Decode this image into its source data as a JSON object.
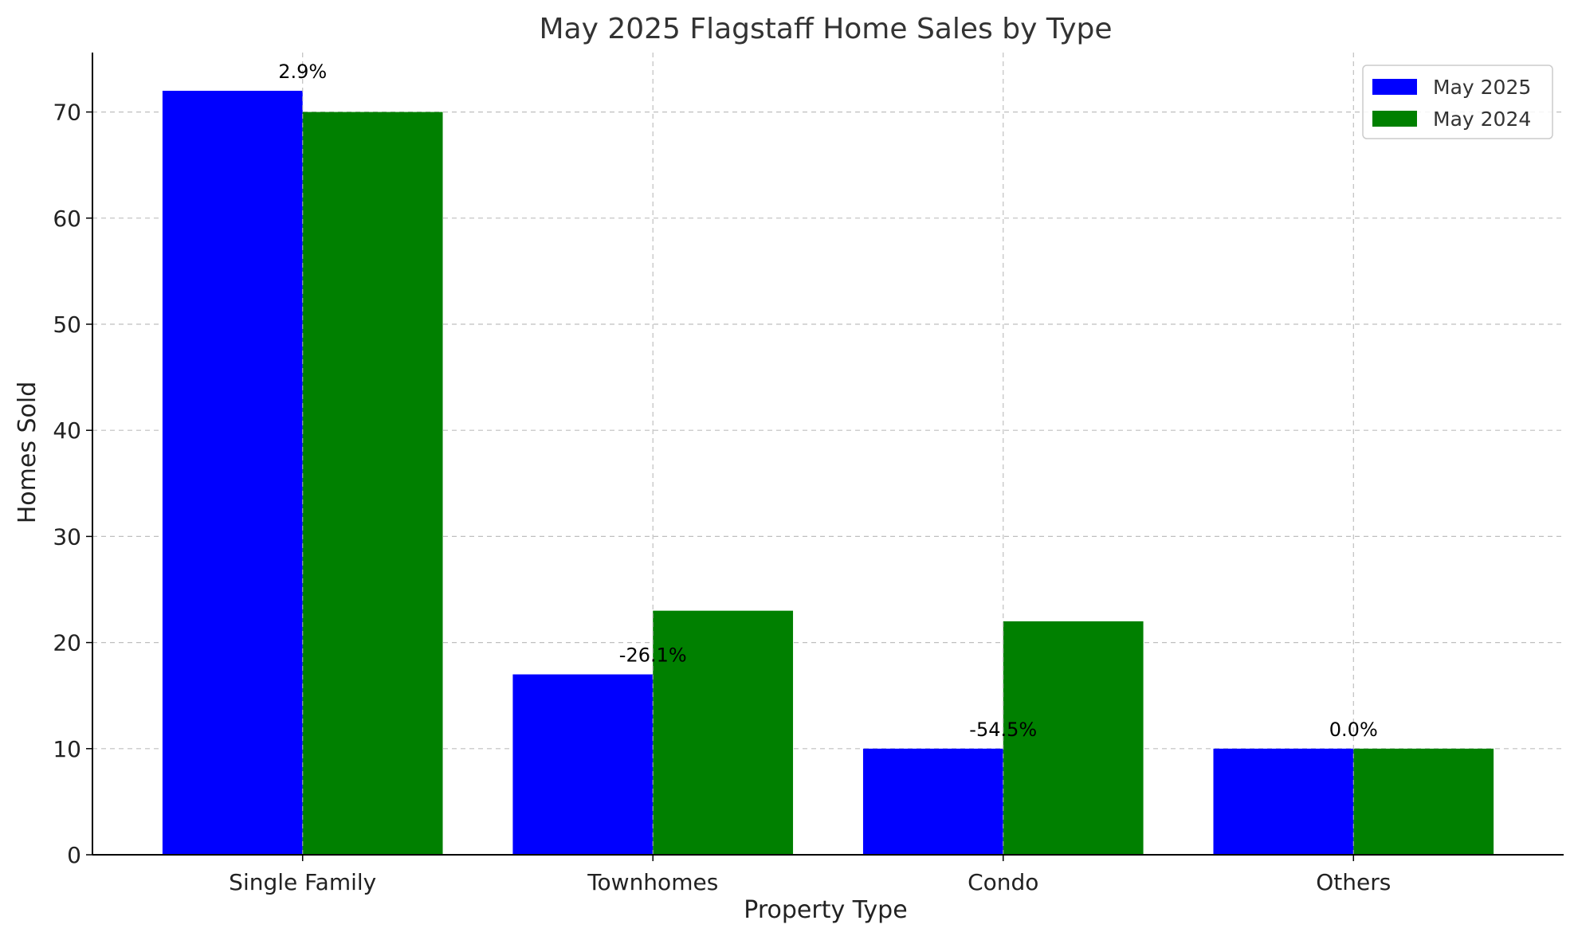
{
  "chart_data": {
    "type": "bar",
    "title": "May 2025 Flagstaff Home Sales by Type",
    "xlabel": "Property Type",
    "ylabel": "Homes Sold",
    "categories": [
      "Single Family",
      "Townhomes",
      "Condo",
      "Others"
    ],
    "series": [
      {
        "name": "May 2025",
        "color": "#0000ff",
        "values": [
          72,
          17,
          10,
          10
        ]
      },
      {
        "name": "May 2024",
        "color": "#008000",
        "values": [
          70,
          23,
          22,
          10
        ]
      }
    ],
    "data_labels": [
      "2.9%",
      "-26.1%",
      "-54.5%",
      "0.0%"
    ],
    "ylim": [
      0,
      75.6
    ],
    "yticks": [
      0,
      10,
      20,
      30,
      40,
      50,
      60,
      70
    ],
    "grid": true,
    "legend_position": "top-right"
  }
}
